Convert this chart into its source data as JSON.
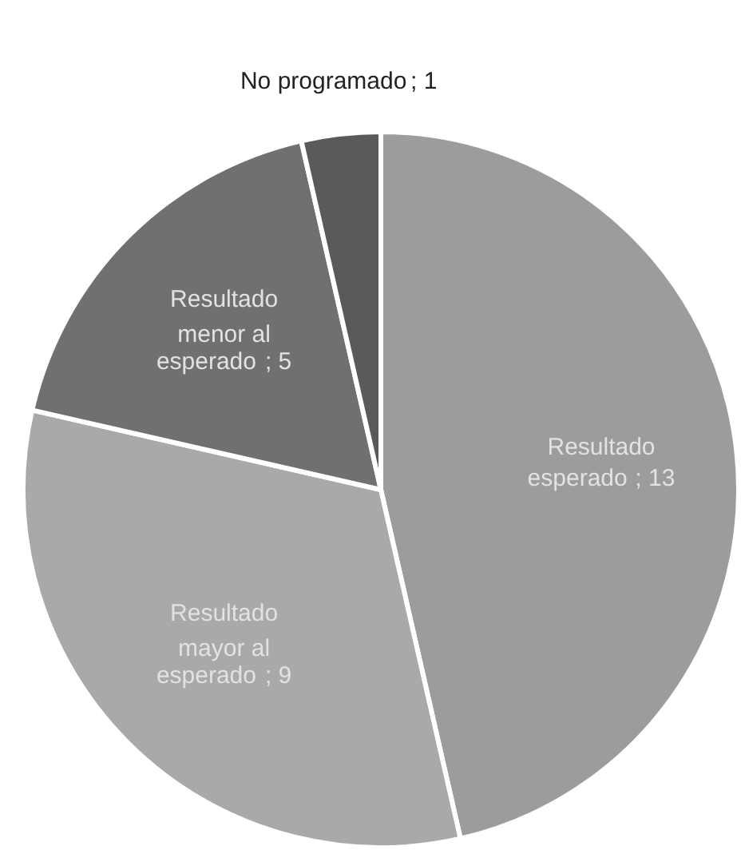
{
  "chart_data": {
    "type": "pie",
    "categories": [
      "Resultado esperado",
      "Resultado mayor al esperado",
      "Resultado menor al esperado",
      "No programado"
    ],
    "values": [
      13,
      9,
      5,
      1
    ],
    "colors": [
      "#9c9c9c",
      "#a9a9a9",
      "#707070",
      "#5a5a5a"
    ],
    "value_labels": [
      "; 13",
      "; 9",
      "; 5",
      "; 1"
    ]
  }
}
